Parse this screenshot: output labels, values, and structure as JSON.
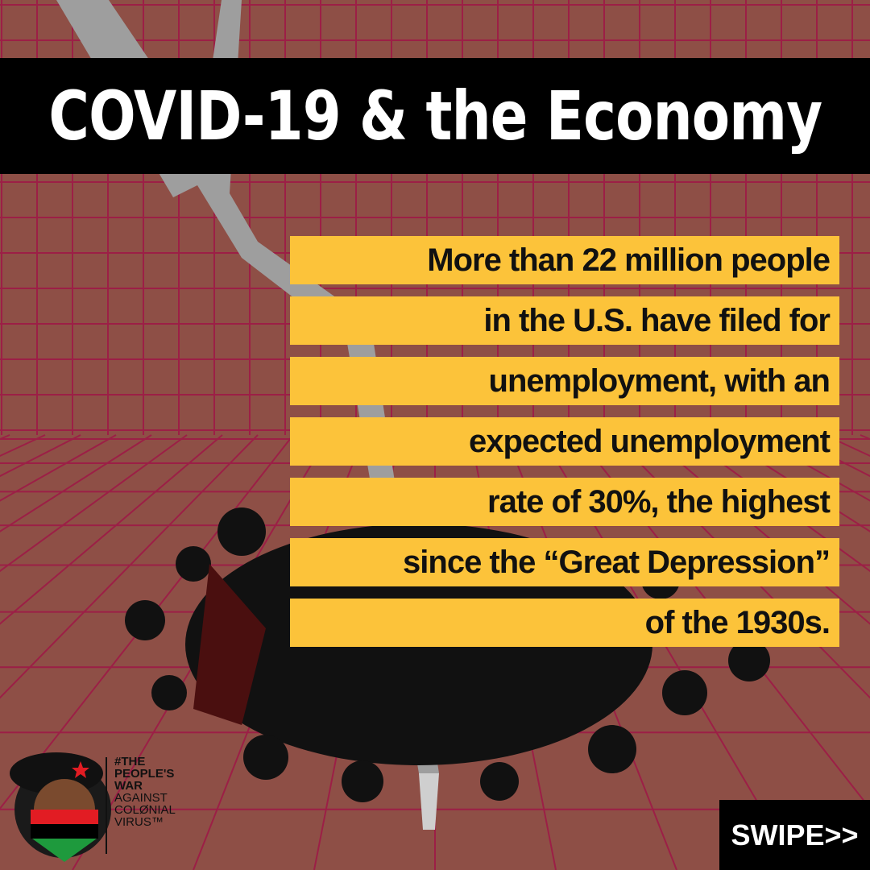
{
  "header": {
    "title": "COVID-19 & the Economy"
  },
  "body": {
    "lines": [
      "More than 22 million people",
      "in the U.S. have filed for",
      "unemployment, with an",
      "expected unemployment",
      "rate of 30%, the highest",
      "since the “Great Depression”",
      "of the 1930s."
    ]
  },
  "logo": {
    "lines": [
      "#THE",
      "PEOPLE'S",
      "WAR",
      "AGAINST",
      "COLØNIAL",
      "VIRUS™"
    ]
  },
  "button": {
    "label": "SWIPE>>"
  }
}
